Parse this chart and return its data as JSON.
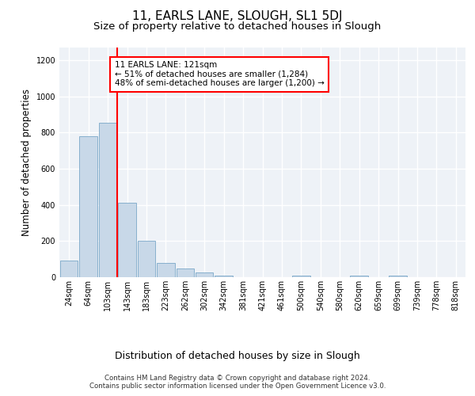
{
  "title_line1": "11, EARLS LANE, SLOUGH, SL1 5DJ",
  "title_line2": "Size of property relative to detached houses in Slough",
  "xlabel": "Distribution of detached houses by size in Slough",
  "ylabel": "Number of detached properties",
  "footer": "Contains HM Land Registry data © Crown copyright and database right 2024.\nContains public sector information licensed under the Open Government Licence v3.0.",
  "bar_labels": [
    "24sqm",
    "64sqm",
    "103sqm",
    "143sqm",
    "183sqm",
    "223sqm",
    "262sqm",
    "302sqm",
    "342sqm",
    "381sqm",
    "421sqm",
    "461sqm",
    "500sqm",
    "540sqm",
    "580sqm",
    "620sqm",
    "659sqm",
    "699sqm",
    "739sqm",
    "778sqm",
    "818sqm"
  ],
  "bar_values": [
    90,
    780,
    855,
    410,
    200,
    80,
    50,
    25,
    10,
    0,
    0,
    0,
    10,
    0,
    0,
    10,
    0,
    10,
    0,
    0,
    0
  ],
  "bar_color": "#c8d8e8",
  "bar_edge_color": "#7aa8c8",
  "property_line_x": 2.5,
  "annotation_text": "11 EARLS LANE: 121sqm\n← 51% of detached houses are smaller (1,284)\n48% of semi-detached houses are larger (1,200) →",
  "annotation_box_color": "white",
  "annotation_box_edge_color": "red",
  "line_color": "red",
  "ylim": [
    0,
    1270
  ],
  "yticks": [
    0,
    200,
    400,
    600,
    800,
    1000,
    1200
  ],
  "bg_color": "#eef2f7",
  "grid_color": "white",
  "title_fontsize": 11,
  "subtitle_fontsize": 9.5,
  "tick_fontsize": 7,
  "ylabel_fontsize": 8.5,
  "xlabel_fontsize": 9,
  "footer_fontsize": 6.2,
  "annotation_fontsize": 7.5
}
